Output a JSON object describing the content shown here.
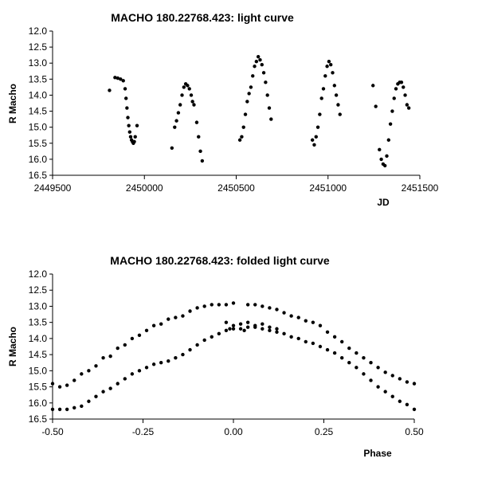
{
  "chart_data": [
    {
      "type": "scatter",
      "title": "MACHO 180.22768.423: light curve",
      "xlabel": "JD",
      "ylabel": "R Macho",
      "xlim": [
        2449500,
        2451500
      ],
      "ylim": [
        12.0,
        16.5
      ],
      "y_inverted": true,
      "grid": false,
      "xticks": [
        "2449500",
        "2450000",
        "2450500",
        "2451000",
        "2451500"
      ],
      "yticks": [
        "12.0",
        "12.5",
        "13.0",
        "13.5",
        "14.0",
        "14.5",
        "15.0",
        "15.5",
        "16.0",
        "16.5"
      ],
      "series": [
        {
          "points": [
            [
              2449810,
              13.85
            ],
            [
              2449840,
              13.45
            ],
            [
              2449855,
              13.47
            ],
            [
              2449870,
              13.5
            ],
            [
              2449885,
              13.55
            ],
            [
              2449895,
              13.8
            ],
            [
              2449900,
              14.1
            ],
            [
              2449905,
              14.4
            ],
            [
              2449910,
              14.7
            ],
            [
              2449915,
              14.95
            ],
            [
              2449920,
              15.15
            ],
            [
              2449925,
              15.3
            ],
            [
              2449930,
              15.4
            ],
            [
              2449935,
              15.45
            ],
            [
              2449940,
              15.5
            ],
            [
              2449945,
              15.45
            ],
            [
              2449950,
              15.3
            ],
            [
              2449960,
              14.95
            ],
            [
              2450150,
              15.65
            ],
            [
              2450165,
              15.0
            ],
            [
              2450175,
              14.8
            ],
            [
              2450185,
              14.55
            ],
            [
              2450195,
              14.3
            ],
            [
              2450205,
              14.0
            ],
            [
              2450215,
              13.75
            ],
            [
              2450225,
              13.65
            ],
            [
              2450235,
              13.7
            ],
            [
              2450245,
              13.8
            ],
            [
              2450255,
              14.0
            ],
            [
              2450262,
              14.2
            ],
            [
              2450270,
              14.3
            ],
            [
              2450285,
              14.85
            ],
            [
              2450295,
              15.3
            ],
            [
              2450305,
              15.75
            ],
            [
              2450315,
              16.05
            ],
            [
              2450520,
              15.4
            ],
            [
              2450530,
              15.3
            ],
            [
              2450540,
              15.0
            ],
            [
              2450550,
              14.6
            ],
            [
              2450560,
              14.2
            ],
            [
              2450570,
              13.95
            ],
            [
              2450580,
              13.75
            ],
            [
              2450590,
              13.4
            ],
            [
              2450600,
              13.1
            ],
            [
              2450610,
              12.95
            ],
            [
              2450620,
              12.8
            ],
            [
              2450630,
              12.9
            ],
            [
              2450640,
              13.05
            ],
            [
              2450650,
              13.3
            ],
            [
              2450660,
              13.6
            ],
            [
              2450670,
              14.0
            ],
            [
              2450680,
              14.4
            ],
            [
              2450690,
              14.75
            ],
            [
              2450915,
              15.4
            ],
            [
              2450925,
              15.55
            ],
            [
              2450935,
              15.3
            ],
            [
              2450945,
              15.0
            ],
            [
              2450955,
              14.6
            ],
            [
              2450965,
              14.1
            ],
            [
              2450975,
              13.8
            ],
            [
              2450985,
              13.4
            ],
            [
              2450995,
              13.1
            ],
            [
              2451005,
              12.95
            ],
            [
              2451015,
              13.05
            ],
            [
              2451025,
              13.3
            ],
            [
              2451035,
              13.7
            ],
            [
              2451045,
              14.0
            ],
            [
              2451055,
              14.3
            ],
            [
              2451065,
              14.6
            ],
            [
              2451245,
              13.7
            ],
            [
              2451260,
              14.35
            ],
            [
              2451280,
              15.7
            ],
            [
              2451290,
              16.0
            ],
            [
              2451300,
              16.15
            ],
            [
              2451310,
              16.2
            ],
            [
              2451320,
              15.9
            ],
            [
              2451330,
              15.4
            ],
            [
              2451340,
              14.9
            ],
            [
              2451350,
              14.5
            ],
            [
              2451360,
              14.1
            ],
            [
              2451370,
              13.8
            ],
            [
              2451380,
              13.65
            ],
            [
              2451390,
              13.6
            ],
            [
              2451400,
              13.6
            ],
            [
              2451410,
              13.75
            ],
            [
              2451420,
              14.0
            ],
            [
              2451430,
              14.3
            ],
            [
              2451440,
              14.4
            ]
          ]
        }
      ]
    },
    {
      "type": "scatter",
      "title": "MACHO 180.22768.423: folded light curve",
      "xlabel": "Phase",
      "ylabel": "R Macho",
      "xlim": [
        -0.5,
        0.5
      ],
      "ylim": [
        12.0,
        16.5
      ],
      "y_inverted": true,
      "grid": false,
      "xticks": [
        "-0.50",
        "-0.25",
        "0.00",
        "0.25",
        "0.50"
      ],
      "yticks": [
        "12.0",
        "12.5",
        "13.0",
        "13.5",
        "14.0",
        "14.5",
        "15.0",
        "15.5",
        "16.0",
        "16.5"
      ],
      "series": [
        {
          "points": [
            [
              -0.5,
              15.4
            ],
            [
              -0.48,
              15.5
            ],
            [
              -0.46,
              15.45
            ],
            [
              -0.44,
              15.3
            ],
            [
              -0.42,
              15.1
            ],
            [
              -0.4,
              15.0
            ],
            [
              -0.38,
              14.85
            ],
            [
              -0.36,
              14.6
            ],
            [
              -0.34,
              14.55
            ],
            [
              -0.32,
              14.3
            ],
            [
              -0.3,
              14.2
            ],
            [
              -0.28,
              14.0
            ],
            [
              -0.26,
              13.9
            ],
            [
              -0.24,
              13.75
            ],
            [
              -0.22,
              13.6
            ],
            [
              -0.2,
              13.55
            ],
            [
              -0.18,
              13.4
            ],
            [
              -0.16,
              13.35
            ],
            [
              -0.14,
              13.3
            ],
            [
              -0.12,
              13.15
            ],
            [
              -0.1,
              13.05
            ],
            [
              -0.08,
              13.0
            ],
            [
              -0.06,
              12.95
            ],
            [
              -0.04,
              12.95
            ],
            [
              -0.02,
              12.95
            ],
            [
              0.0,
              12.9
            ],
            [
              0.04,
              12.95
            ],
            [
              0.06,
              12.95
            ],
            [
              0.08,
              13.0
            ],
            [
              0.1,
              13.05
            ],
            [
              0.12,
              13.1
            ],
            [
              0.14,
              13.2
            ],
            [
              0.16,
              13.3
            ],
            [
              0.18,
              13.35
            ],
            [
              0.2,
              13.45
            ],
            [
              0.22,
              13.5
            ],
            [
              0.24,
              13.6
            ],
            [
              0.26,
              13.8
            ],
            [
              0.28,
              13.95
            ],
            [
              0.3,
              14.1
            ],
            [
              0.32,
              14.3
            ],
            [
              0.34,
              14.45
            ],
            [
              0.36,
              14.6
            ],
            [
              0.38,
              14.75
            ],
            [
              0.4,
              14.9
            ],
            [
              0.42,
              15.05
            ],
            [
              0.44,
              15.15
            ],
            [
              0.46,
              15.25
            ],
            [
              0.48,
              15.35
            ],
            [
              0.5,
              15.4
            ],
            [
              -0.5,
              16.2
            ],
            [
              -0.48,
              16.2
            ],
            [
              -0.46,
              16.2
            ],
            [
              -0.44,
              16.15
            ],
            [
              -0.42,
              16.1
            ],
            [
              -0.4,
              15.95
            ],
            [
              -0.38,
              15.8
            ],
            [
              -0.36,
              15.65
            ],
            [
              -0.34,
              15.55
            ],
            [
              -0.32,
              15.4
            ],
            [
              -0.3,
              15.25
            ],
            [
              -0.28,
              15.1
            ],
            [
              -0.26,
              15.0
            ],
            [
              -0.24,
              14.9
            ],
            [
              -0.22,
              14.8
            ],
            [
              -0.2,
              14.75
            ],
            [
              -0.18,
              14.7
            ],
            [
              -0.16,
              14.6
            ],
            [
              -0.14,
              14.5
            ],
            [
              -0.12,
              14.35
            ],
            [
              -0.1,
              14.2
            ],
            [
              -0.08,
              14.05
            ],
            [
              -0.06,
              13.95
            ],
            [
              -0.04,
              13.85
            ],
            [
              -0.02,
              13.75
            ],
            [
              0.0,
              13.7
            ],
            [
              0.02,
              13.7
            ],
            [
              0.04,
              13.65
            ],
            [
              0.06,
              13.65
            ],
            [
              0.08,
              13.7
            ],
            [
              0.1,
              13.75
            ],
            [
              0.12,
              13.8
            ],
            [
              0.14,
              13.85
            ],
            [
              0.16,
              13.95
            ],
            [
              0.18,
              14.0
            ],
            [
              0.2,
              14.1
            ],
            [
              0.22,
              14.15
            ],
            [
              0.24,
              14.25
            ],
            [
              0.26,
              14.35
            ],
            [
              0.28,
              14.45
            ],
            [
              0.3,
              14.6
            ],
            [
              0.32,
              14.75
            ],
            [
              0.34,
              14.9
            ],
            [
              0.36,
              15.1
            ],
            [
              0.38,
              15.3
            ],
            [
              0.4,
              15.5
            ],
            [
              0.42,
              15.65
            ],
            [
              0.44,
              15.8
            ],
            [
              0.46,
              15.95
            ],
            [
              0.48,
              16.05
            ],
            [
              0.5,
              16.2
            ],
            [
              -0.02,
              13.5
            ],
            [
              0.0,
              13.6
            ],
            [
              0.02,
              13.55
            ],
            [
              0.04,
              13.5
            ],
            [
              0.06,
              13.6
            ],
            [
              0.08,
              13.55
            ],
            [
              0.1,
              13.65
            ],
            [
              0.12,
              13.7
            ],
            [
              -0.01,
              13.7
            ],
            [
              0.03,
              13.75
            ]
          ]
        }
      ]
    }
  ]
}
